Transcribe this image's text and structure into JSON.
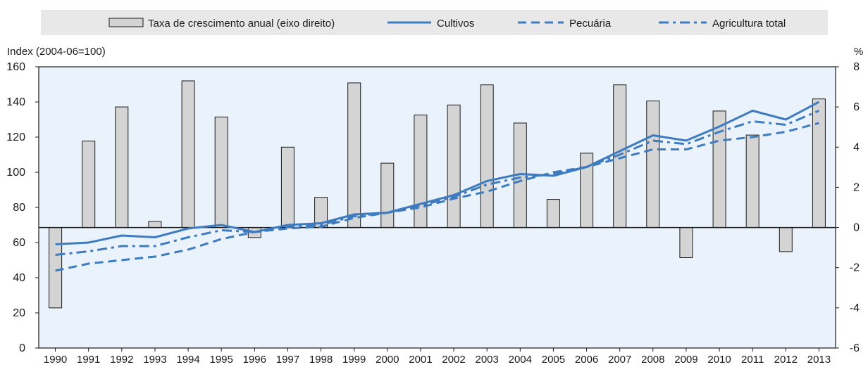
{
  "chart_data": {
    "type": "bar+line",
    "legend": {
      "placement": "top",
      "entries": [
        {
          "label": "Taxa de crescimento anual (eixo direito)",
          "kind": "bar"
        },
        {
          "label": "Cultivos",
          "kind": "line-solid"
        },
        {
          "label": "Pecuária",
          "kind": "line-dashed"
        },
        {
          "label": "Agricultura total",
          "kind": "line-dashdot"
        }
      ]
    },
    "left_axis": {
      "label": "Index (2004-06=100)",
      "min": 0,
      "max": 160,
      "ticks": [
        "0",
        "20",
        "40",
        "60",
        "80",
        "100",
        "120",
        "140",
        "160"
      ]
    },
    "right_axis": {
      "label": "%",
      "min": -6,
      "max": 8,
      "ticks": [
        "-6",
        "-4",
        "-2",
        "0",
        "2",
        "4",
        "6",
        "8"
      ]
    },
    "categories": [
      "1990",
      "1991",
      "1992",
      "1993",
      "1994",
      "1995",
      "1996",
      "1997",
      "1998",
      "1999",
      "2000",
      "2001",
      "2002",
      "2003",
      "2004",
      "2005",
      "2006",
      "2007",
      "2008",
      "2009",
      "2010",
      "2011",
      "2012",
      "2013"
    ],
    "bars": {
      "name": "Taxa de crescimento anual (eixo direito)",
      "axis": "right",
      "values": [
        -4.0,
        4.3,
        6.0,
        0.3,
        7.3,
        5.5,
        -0.5,
        4.0,
        1.5,
        7.2,
        3.2,
        5.6,
        6.1,
        7.1,
        5.2,
        1.4,
        3.7,
        7.1,
        6.3,
        -1.5,
        5.8,
        4.6,
        -1.2,
        6.4
      ]
    },
    "series": [
      {
        "name": "Cultivos",
        "axis": "left",
        "style": "solid",
        "values": [
          59,
          60,
          64,
          63,
          68,
          70,
          66,
          70,
          71,
          76,
          77,
          82,
          87,
          95,
          99,
          98,
          103,
          112,
          121,
          118,
          126,
          135,
          130,
          140
        ]
      },
      {
        "name": "Pecuária",
        "axis": "left",
        "style": "dashed",
        "values": [
          44,
          48,
          50,
          52,
          56,
          62,
          66,
          68,
          69,
          74,
          77,
          80,
          85,
          89,
          95,
          100,
          103,
          108,
          113,
          113,
          118,
          120,
          123,
          128
        ]
      },
      {
        "name": "Agricultura total",
        "axis": "left",
        "style": "dashdot",
        "values": [
          53,
          55,
          58,
          58,
          63,
          67,
          66,
          69,
          70,
          75,
          77,
          81,
          86,
          93,
          97,
          99,
          103,
          110,
          118,
          116,
          123,
          129,
          127,
          135
        ]
      }
    ],
    "colors": {
      "line": "#3e7bbf",
      "bar_fill": "#d4d4d4",
      "bar_stroke": "#1a1a1a",
      "plot_bg": "#eaf3fb",
      "legend_bg": "#e8e8e8"
    },
    "grid": false
  }
}
